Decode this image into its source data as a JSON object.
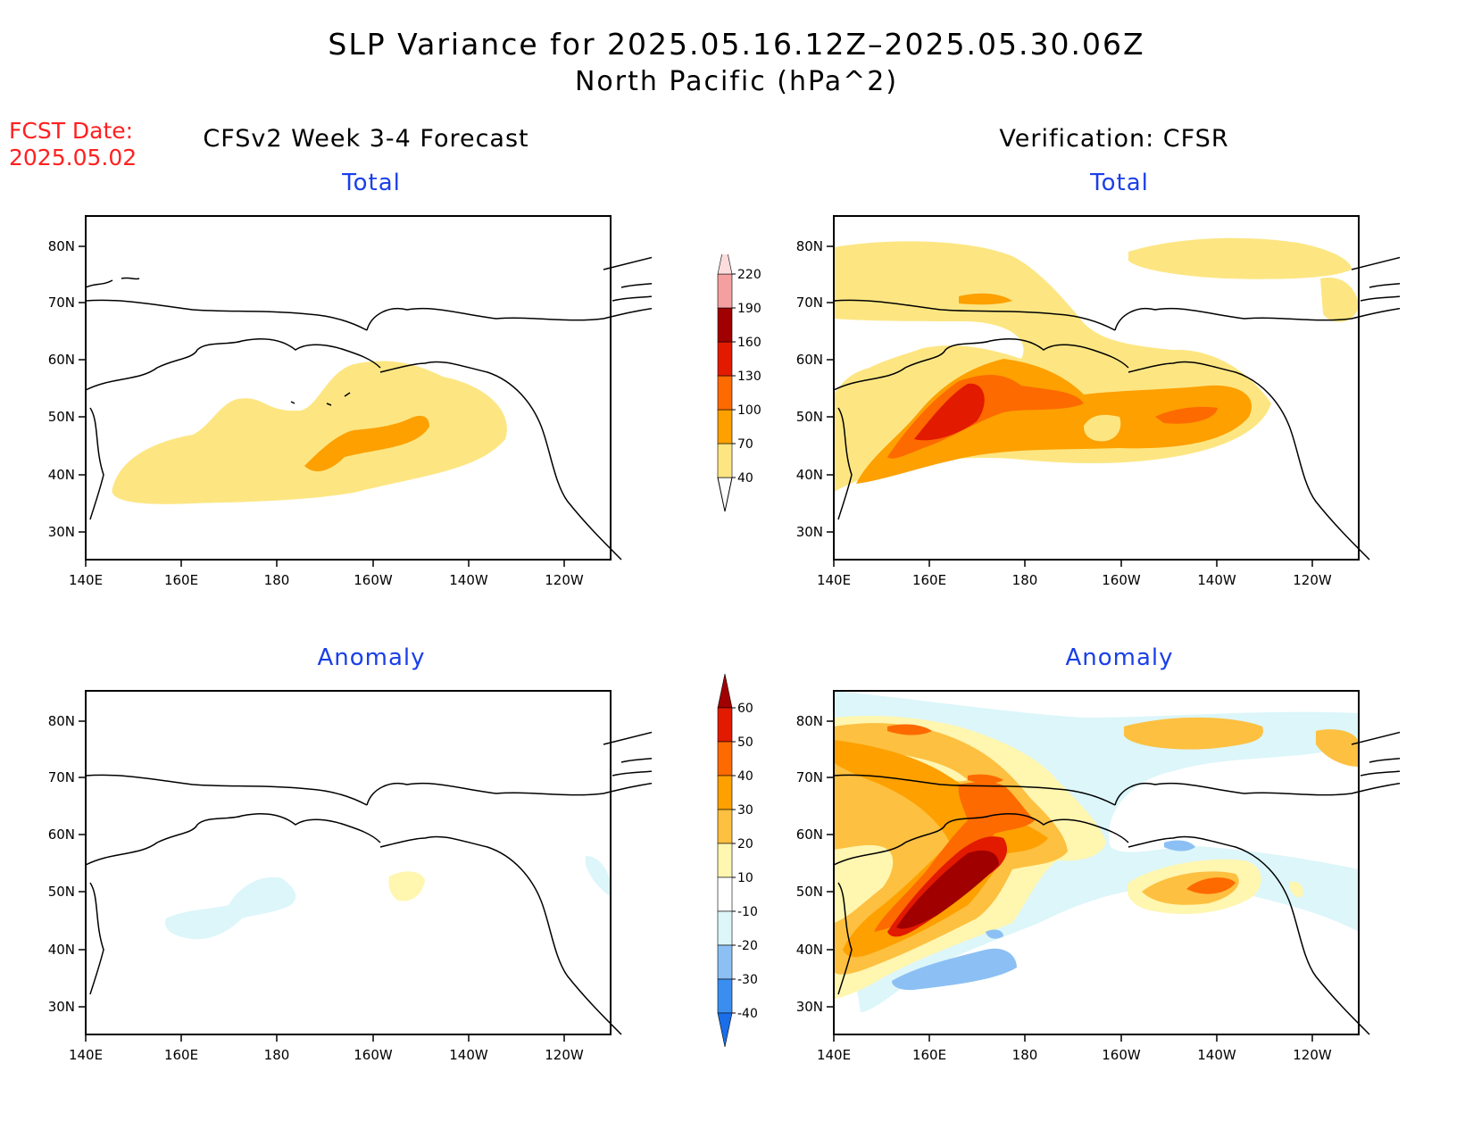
{
  "title": "SLP Variance for 2025.05.16.12Z–2025.05.30.06Z",
  "subtitle": "North Pacific (hPa^2)",
  "fcst_date": {
    "label": "FCST Date:",
    "value": "2025.05.02"
  },
  "columns": {
    "left": "CFSv2 Week 3-4 Forecast",
    "right": "Verification: CFSR"
  },
  "panels": [
    {
      "id": "fcst-total",
      "title": "Total"
    },
    {
      "id": "verif-total",
      "title": "Total"
    },
    {
      "id": "fcst-anomaly",
      "title": "Anomaly"
    },
    {
      "id": "verif-anomaly",
      "title": "Anomaly"
    }
  ],
  "axes": {
    "lon_labels": [
      "140E",
      "160E",
      "180",
      "160W",
      "140W",
      "120W"
    ],
    "lat_labels": [
      "80N",
      "70N",
      "60N",
      "50N",
      "40N",
      "30N"
    ]
  },
  "total_colorbar": {
    "levels": [
      "40",
      "70",
      "100",
      "130",
      "160",
      "190",
      "220"
    ],
    "colors": [
      "#fde682",
      "#fda000",
      "#fd6a00",
      "#e21a00",
      "#a00000",
      "#f4a0a0",
      "#fcdcdc"
    ]
  },
  "anomaly_colorbar": {
    "levels": [
      "-40",
      "-30",
      "-20",
      "-10",
      "10",
      "20",
      "30",
      "40",
      "50",
      "60"
    ],
    "colors": [
      "#1a6ee8",
      "#3a8ef0",
      "#8cc0f4",
      "#dcf6fa",
      "#ffffff",
      "#fff6b0",
      "#fdc040",
      "#fda000",
      "#fd6a00",
      "#e21a00",
      "#a00000"
    ]
  },
  "colors": {
    "title_blue": "#1a3fe8",
    "fcst_red": "#ff2020"
  }
}
